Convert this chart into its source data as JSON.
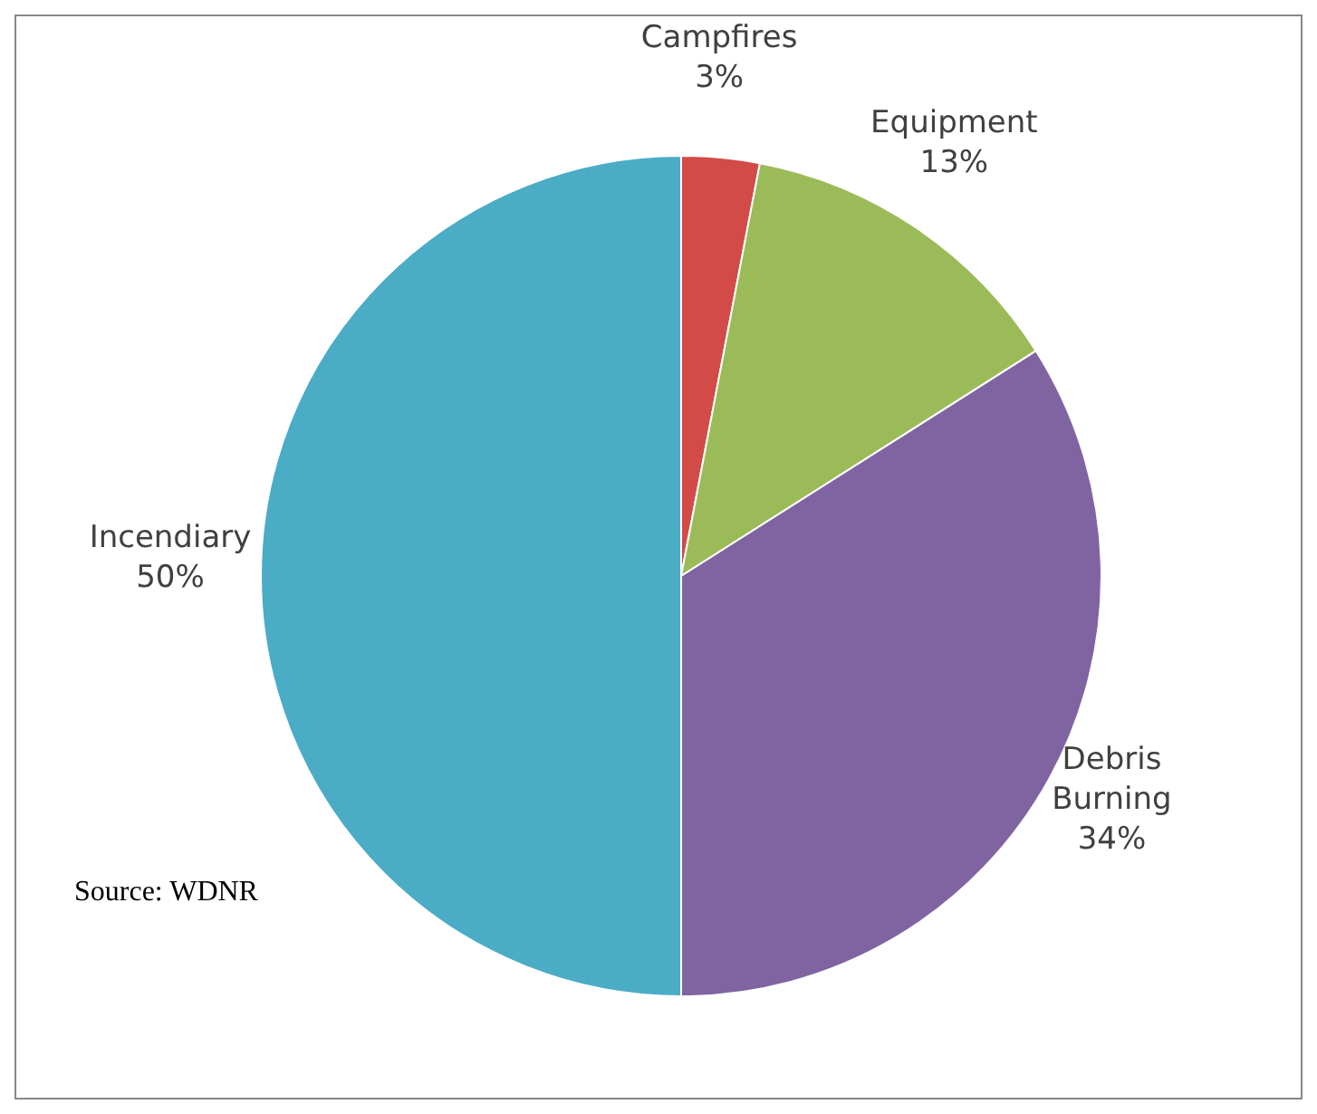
{
  "chart_data": {
    "type": "pie",
    "categories": [
      "Campfires",
      "Equipment",
      "Debris Burning",
      "Incendiary"
    ],
    "values": [
      3,
      13,
      34,
      50
    ],
    "value_labels": [
      "3%",
      "13%",
      "34%",
      "50%"
    ],
    "colors": [
      "#d24b48",
      "#9bbb59",
      "#8064a2",
      "#4bacc6"
    ],
    "legend": false,
    "annotations": [
      "Source:  WDNR"
    ]
  }
}
